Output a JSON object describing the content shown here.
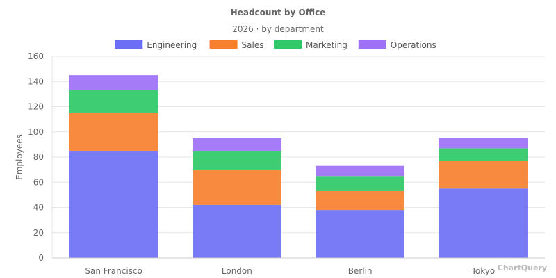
{
  "chart_data": {
    "type": "bar",
    "stacked": true,
    "title": "Headcount by Office",
    "subtitle": "2026 · by department",
    "xlabel": "",
    "ylabel": "Employees",
    "ylim": [
      0,
      160
    ],
    "yticks": [
      0,
      20,
      40,
      60,
      80,
      100,
      120,
      140,
      160
    ],
    "grid": true,
    "legend_position": "top-center",
    "categories": [
      "San Francisco",
      "London",
      "Berlin",
      "Tokyo"
    ],
    "series": [
      {
        "name": "Engineering",
        "color": "#6c6ff5",
        "values": [
          85,
          42,
          38,
          55
        ]
      },
      {
        "name": "Sales",
        "color": "#f7802f",
        "values": [
          30,
          28,
          15,
          22
        ]
      },
      {
        "name": "Marketing",
        "color": "#2fc967",
        "values": [
          18,
          15,
          12,
          10
        ]
      },
      {
        "name": "Operations",
        "color": "#9d70f7",
        "values": [
          12,
          10,
          8,
          8
        ]
      }
    ]
  },
  "watermark": "ChartQuery"
}
